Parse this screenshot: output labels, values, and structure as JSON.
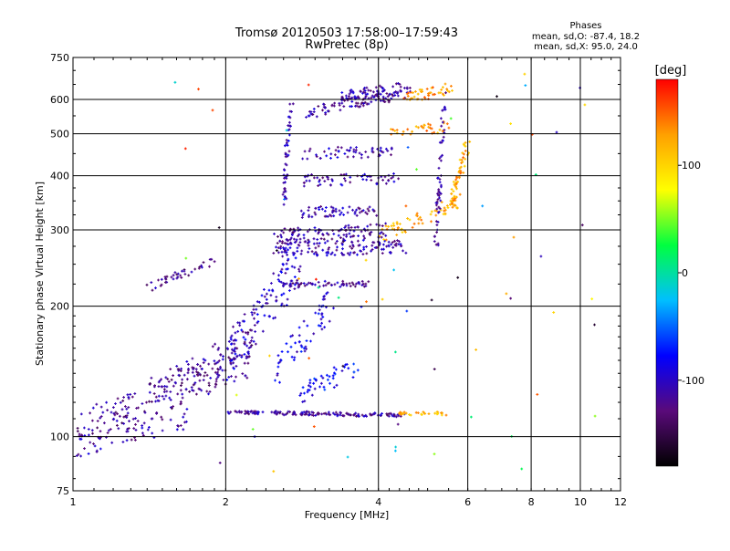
{
  "chart_data": {
    "type": "scatter",
    "title": "Tromsø 20120503 17:58:00–17:59:43",
    "subtitle": "RwPretec (8p)",
    "stats": {
      "heading": "Phases",
      "line_o": "mean, sd,O: -87.4, 18.2",
      "line_x": "mean, sd,X:  95.0, 24.0"
    },
    "xlabel": "Frequency [MHz]",
    "ylabel": "Stationary phase Virtual Height [km]",
    "x_scale": "log",
    "y_scale": "log",
    "xlim": [
      1,
      12
    ],
    "ylim": [
      75,
      750
    ],
    "x_ticks": [
      {
        "value": 1,
        "label": "1"
      },
      {
        "value": 2,
        "label": "2"
      },
      {
        "value": 4,
        "label": "4"
      },
      {
        "value": 6,
        "label": "6"
      },
      {
        "value": 8,
        "label": "8"
      },
      {
        "value": 10,
        "label": "10"
      },
      {
        "value": 12,
        "label": "12"
      }
    ],
    "x_gridlines": [
      2,
      4,
      6,
      8,
      10
    ],
    "y_ticks": [
      {
        "value": 75,
        "label": "75"
      },
      {
        "value": 100,
        "label": "100"
      },
      {
        "value": 200,
        "label": "200"
      },
      {
        "value": 300,
        "label": "300"
      },
      {
        "value": 400,
        "label": "400"
      },
      {
        "value": 500,
        "label": "500"
      },
      {
        "value": 600,
        "label": "600"
      },
      {
        "value": 750,
        "label": "750"
      }
    ],
    "y_gridlines": [
      100,
      200,
      300,
      400,
      500,
      600
    ],
    "grid": true,
    "colorbar": {
      "label": "[deg]",
      "range": [
        -180,
        180
      ],
      "ticks": [
        {
          "value": 100,
          "label": "100"
        },
        {
          "value": 0,
          "label": "0"
        },
        {
          "value": -100,
          "label": "-100"
        }
      ],
      "colors": [
        "#000000",
        "#5a0a7a",
        "#0000ff",
        "#00bfff",
        "#00ff40",
        "#ffff00",
        "#ffa000",
        "#ff0000"
      ]
    },
    "traces": [
      {
        "f0": 1.02,
        "f1": 2.25,
        "h0": 105,
        "h1": 150,
        "phase": -120,
        "n": 180,
        "spread": 0.09
      },
      {
        "f0": 1.02,
        "f1": 1.7,
        "h0": 95,
        "h1": 110,
        "phase": -110,
        "n": 60,
        "spread": 0.06
      },
      {
        "f0": 1.4,
        "f1": 2.3,
        "h0": 125,
        "h1": 170,
        "phase": -115,
        "n": 90,
        "spread": 0.08
      },
      {
        "f0": 2.0,
        "f1": 4.5,
        "h0": 114,
        "h1": 112,
        "phase": -115,
        "n": 150,
        "spread": 0.01
      },
      {
        "f0": 4.3,
        "f1": 5.5,
        "h0": 113,
        "h1": 113,
        "phase": 120,
        "n": 30,
        "spread": 0.01
      },
      {
        "f0": 2.0,
        "f1": 2.8,
        "h0": 150,
        "h1": 250,
        "phase": -100,
        "n": 120,
        "spread": 0.12
      },
      {
        "f0": 2.5,
        "f1": 3.2,
        "h0": 140,
        "h1": 200,
        "phase": -90,
        "n": 60,
        "spread": 0.1
      },
      {
        "f0": 2.8,
        "f1": 3.6,
        "h0": 125,
        "h1": 145,
        "phase": -80,
        "n": 45,
        "spread": 0.05
      },
      {
        "f0": 1.4,
        "f1": 1.9,
        "h0": 220,
        "h1": 255,
        "phase": -120,
        "n": 40,
        "spread": 0.02
      },
      {
        "f0": 2.5,
        "f1": 4.5,
        "h0": 270,
        "h1": 275,
        "phase": -110,
        "n": 140,
        "spread": 0.04
      },
      {
        "f0": 2.5,
        "f1": 4.2,
        "h0": 290,
        "h1": 300,
        "phase": -115,
        "n": 110,
        "spread": 0.04
      },
      {
        "f0": 2.6,
        "f1": 3.8,
        "h0": 225,
        "h1": 225,
        "phase": -115,
        "n": 60,
        "spread": 0.015
      },
      {
        "f0": 2.8,
        "f1": 4.0,
        "h0": 330,
        "h1": 330,
        "phase": -110,
        "n": 60,
        "spread": 0.03
      },
      {
        "f0": 2.8,
        "f1": 4.4,
        "h0": 390,
        "h1": 395,
        "phase": -110,
        "n": 60,
        "spread": 0.03
      },
      {
        "f0": 2.8,
        "f1": 4.3,
        "h0": 450,
        "h1": 455,
        "phase": -110,
        "n": 55,
        "spread": 0.03
      },
      {
        "f0": 2.9,
        "f1": 4.5,
        "h0": 560,
        "h1": 620,
        "phase": -115,
        "n": 90,
        "spread": 0.03
      },
      {
        "f0": 3.4,
        "f1": 4.6,
        "h0": 610,
        "h1": 640,
        "phase": -110,
        "n": 70,
        "spread": 0.03
      },
      {
        "f0": 4.0,
        "f1": 5.8,
        "h0": 290,
        "h1": 350,
        "phase": 120,
        "n": 70,
        "spread": 0.04
      },
      {
        "f0": 5.6,
        "f1": 6.0,
        "h0": 350,
        "h1": 480,
        "phase": 125,
        "n": 50,
        "spread": 0.04
      },
      {
        "f0": 4.5,
        "f1": 5.6,
        "h0": 600,
        "h1": 640,
        "phase": 130,
        "n": 45,
        "spread": 0.03
      },
      {
        "f0": 4.2,
        "f1": 5.5,
        "h0": 500,
        "h1": 520,
        "phase": 130,
        "n": 35,
        "spread": 0.03
      },
      {
        "f0": 5.2,
        "f1": 5.4,
        "h0": 280,
        "h1": 620,
        "phase": -110,
        "n": 60,
        "spread": 0.04
      },
      {
        "f0": 2.6,
        "f1": 2.7,
        "h0": 350,
        "h1": 620,
        "phase": -105,
        "n": 50,
        "spread": 0.05
      },
      {
        "f0": 1.5,
        "f1": 11,
        "h0": 80,
        "h1": 700,
        "phase": -60,
        "n": 70,
        "spread": 0.0,
        "scatter": true
      }
    ]
  }
}
